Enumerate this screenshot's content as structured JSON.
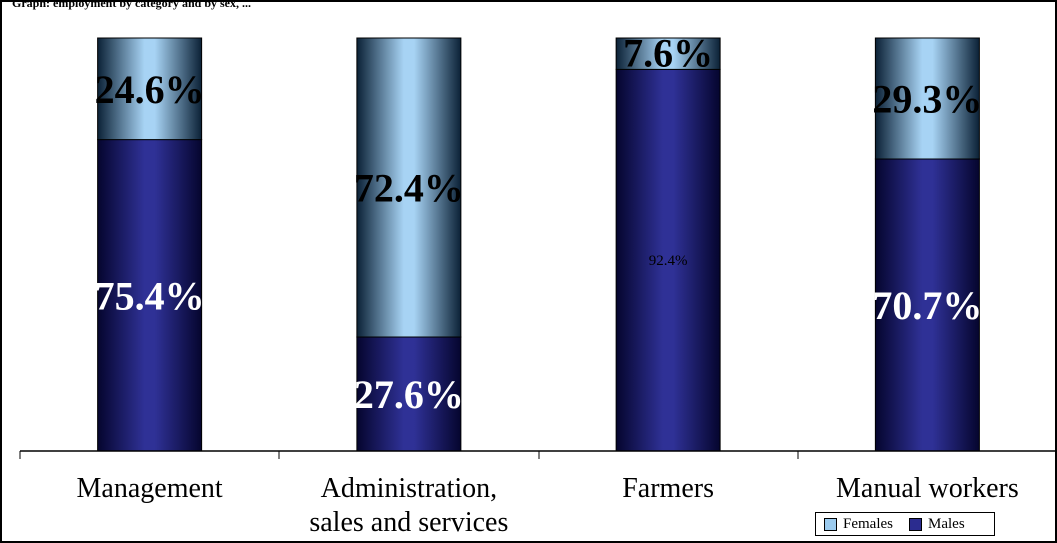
{
  "page": {
    "title_fragment": "Graph: employment by category and by sex, ..."
  },
  "chart_data": {
    "type": "bar",
    "stacked": true,
    "percent_stacked": true,
    "categories": [
      "Management",
      "Administration,\nsales and services",
      "Farmers",
      "Manual workers"
    ],
    "series": [
      {
        "name": "Males",
        "values": [
          75.4,
          27.6,
          92.4,
          70.7
        ],
        "color": "#2b2c8f"
      },
      {
        "name": "Females",
        "values": [
          24.6,
          72.4,
          7.6,
          29.3
        ],
        "color": "#9bcbef"
      }
    ],
    "data_labels": {
      "Males": [
        "75.4%",
        "27.6%",
        "92.4%",
        "70.7%"
      ],
      "Females": [
        "24.6%",
        "72.4%",
        "7.6%",
        "29.3%"
      ]
    },
    "ylim": [
      0,
      100
    ],
    "legend": {
      "position": "bottom-right",
      "entries": [
        "Females",
        "Males"
      ]
    }
  }
}
